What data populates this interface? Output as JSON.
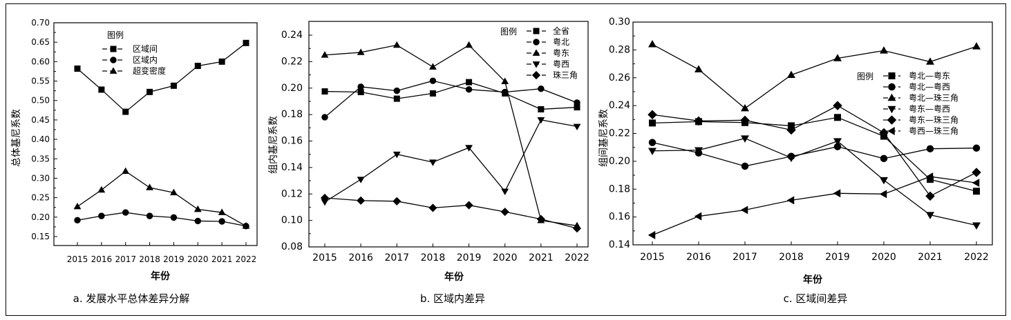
{
  "chart_data": [
    {
      "type": "line",
      "caption": "a. 发展水平总体差异分解",
      "xlabel": "年份",
      "ylabel": "总体基尼系数",
      "legend_title": "图例",
      "legend_position": "top-center",
      "x": [
        "2015",
        "2016",
        "2017",
        "2018",
        "2019",
        "2020",
        "2021",
        "2022"
      ],
      "ylim": [
        0.15,
        0.7
      ],
      "yticks": [
        "0.15",
        "0.20",
        "0.25",
        "0.30",
        "0.35",
        "0.40",
        "0.45",
        "0.50",
        "0.55",
        "0.60",
        "0.65",
        "0.70"
      ],
      "series": [
        {
          "name": "区域间",
          "marker": "square",
          "values": [
            0.582,
            0.528,
            0.471,
            0.522,
            0.538,
            0.589,
            0.6,
            0.648
          ]
        },
        {
          "name": "区域内",
          "marker": "circle",
          "values": [
            0.192,
            0.203,
            0.212,
            0.203,
            0.199,
            0.19,
            0.189,
            0.177
          ]
        },
        {
          "name": "超变密度",
          "marker": "triangle-up",
          "values": [
            0.227,
            0.27,
            0.318,
            0.276,
            0.263,
            0.22,
            0.212,
            0.177
          ]
        }
      ]
    },
    {
      "type": "line",
      "caption": "b. 区域内差异",
      "xlabel": "年份",
      "ylabel": "组内基尼系数",
      "legend_title": "图例",
      "legend_position": "top-right",
      "x": [
        "2015",
        "2016",
        "2017",
        "2018",
        "2019",
        "2020",
        "2021",
        "2022"
      ],
      "ylim": [
        0.08,
        0.24
      ],
      "yticks": [
        "0.08",
        "0.10",
        "0.12",
        "0.14",
        "0.16",
        "0.18",
        "0.20",
        "0.22",
        "0.24"
      ],
      "series": [
        {
          "name": "全省",
          "marker": "square",
          "values": [
            0.1975,
            0.197,
            0.192,
            0.196,
            0.2045,
            0.196,
            0.184,
            0.1855
          ]
        },
        {
          "name": "粤北",
          "marker": "circle",
          "values": [
            0.178,
            0.201,
            0.198,
            0.2055,
            0.199,
            0.197,
            0.1995,
            0.189
          ]
        },
        {
          "name": "粤东",
          "marker": "triangle-up",
          "values": [
            0.225,
            0.227,
            0.2325,
            0.216,
            0.2325,
            0.205,
            0.1,
            0.096
          ]
        },
        {
          "name": "粤西",
          "marker": "triangle-down",
          "values": [
            0.114,
            0.131,
            0.15,
            0.144,
            0.155,
            0.122,
            0.176,
            0.171
          ]
        },
        {
          "name": "珠三角",
          "marker": "diamond",
          "values": [
            0.117,
            0.115,
            0.1145,
            0.1095,
            0.1115,
            0.1065,
            0.101,
            0.094
          ]
        }
      ]
    },
    {
      "type": "line",
      "caption": "c. 区域间差异",
      "xlabel": "年份",
      "ylabel": "组间基尼系数",
      "legend_title": "图例",
      "legend_position": "right",
      "x": [
        "2015",
        "2016",
        "2017",
        "2018",
        "2019",
        "2020",
        "2021",
        "2022"
      ],
      "ylim": [
        0.14,
        0.3
      ],
      "yticks": [
        "0.14",
        "0.16",
        "0.18",
        "0.20",
        "0.22",
        "0.24",
        "0.26",
        "0.28",
        "0.30"
      ],
      "series": [
        {
          "name": "粤北—粤东",
          "marker": "square",
          "values": [
            0.2275,
            0.2285,
            0.2278,
            0.2255,
            0.2315,
            0.218,
            0.187,
            0.1785
          ]
        },
        {
          "name": "粤北—粤西",
          "marker": "circle",
          "values": [
            0.2135,
            0.206,
            0.1965,
            0.2035,
            0.2105,
            0.202,
            0.209,
            0.2095
          ]
        },
        {
          "name": "粤北—珠三角",
          "marker": "triangle-up",
          "values": [
            0.284,
            0.266,
            0.238,
            0.262,
            0.274,
            0.2795,
            0.2715,
            0.2825
          ]
        },
        {
          "name": "粤东—粤西",
          "marker": "triangle-down",
          "values": [
            0.2075,
            0.208,
            0.2165,
            0.2025,
            0.2145,
            0.1865,
            0.1615,
            0.154
          ]
        },
        {
          "name": "粤东—珠三角",
          "marker": "diamond",
          "values": [
            0.2335,
            0.229,
            0.2295,
            0.2225,
            0.24,
            0.2205,
            0.175,
            0.192
          ]
        },
        {
          "name": "粤西—珠三角",
          "marker": "triangle-left",
          "values": [
            0.147,
            0.1605,
            0.165,
            0.172,
            0.177,
            0.1765,
            0.189,
            0.1845
          ]
        }
      ]
    }
  ]
}
